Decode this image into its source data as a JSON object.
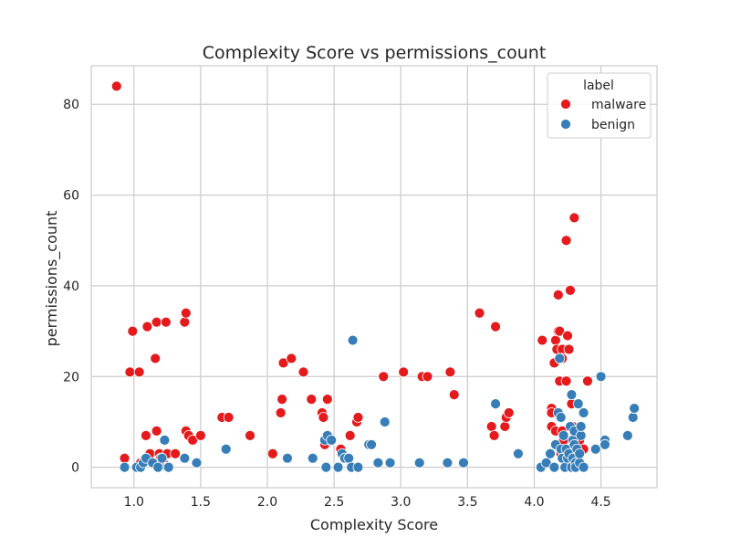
{
  "chart_data": {
    "type": "scatter",
    "title": "Complexity Score vs permissions_count",
    "xlabel": "Complexity Score",
    "ylabel": "permissions_count",
    "xlim": [
      0.68,
      4.92
    ],
    "ylim": [
      -4.5,
      88.5
    ],
    "xticks": [
      1.0,
      1.5,
      2.0,
      2.5,
      3.0,
      3.5,
      4.0,
      4.5
    ],
    "xtick_labels": [
      "1.0",
      "1.5",
      "2.0",
      "2.5",
      "3.0",
      "3.5",
      "4.0",
      "4.5"
    ],
    "yticks": [
      0,
      20,
      40,
      60,
      80
    ],
    "ytick_labels": [
      "0",
      "20",
      "40",
      "60",
      "80"
    ],
    "grid": true,
    "legend": {
      "title": "label",
      "placement": "top-right"
    },
    "series": [
      {
        "name": "malware",
        "color": "#e41a1c",
        "points": [
          [
            0.87,
            84
          ],
          [
            0.93,
            2
          ],
          [
            0.97,
            21
          ],
          [
            0.99,
            30
          ],
          [
            1.04,
            21
          ],
          [
            1.05,
            1
          ],
          [
            1.09,
            7
          ],
          [
            1.1,
            31
          ],
          [
            1.12,
            3
          ],
          [
            1.16,
            24
          ],
          [
            1.17,
            32
          ],
          [
            1.17,
            8
          ],
          [
            1.19,
            3
          ],
          [
            1.2,
            2
          ],
          [
            1.22,
            1
          ],
          [
            1.24,
            32
          ],
          [
            1.25,
            3
          ],
          [
            1.31,
            3
          ],
          [
            1.38,
            32
          ],
          [
            1.39,
            34
          ],
          [
            1.39,
            8
          ],
          [
            1.41,
            7
          ],
          [
            1.44,
            6
          ],
          [
            1.5,
            7
          ],
          [
            1.66,
            11
          ],
          [
            1.71,
            11
          ],
          [
            1.87,
            7
          ],
          [
            2.04,
            3
          ],
          [
            2.1,
            12
          ],
          [
            2.11,
            15
          ],
          [
            2.12,
            23
          ],
          [
            2.18,
            24
          ],
          [
            2.27,
            21
          ],
          [
            2.33,
            15
          ],
          [
            2.41,
            12
          ],
          [
            2.42,
            11
          ],
          [
            2.43,
            5
          ],
          [
            2.45,
            15
          ],
          [
            2.47,
            6
          ],
          [
            2.55,
            4
          ],
          [
            2.62,
            7
          ],
          [
            2.67,
            10
          ],
          [
            2.68,
            11
          ],
          [
            2.87,
            20
          ],
          [
            3.02,
            21
          ],
          [
            3.16,
            20
          ],
          [
            3.2,
            20
          ],
          [
            3.37,
            21
          ],
          [
            3.4,
            16
          ],
          [
            3.59,
            34
          ],
          [
            3.68,
            9
          ],
          [
            3.7,
            7
          ],
          [
            3.71,
            31
          ],
          [
            3.78,
            9
          ],
          [
            3.79,
            11
          ],
          [
            3.81,
            12
          ],
          [
            4.06,
            28
          ],
          [
            4.13,
            13
          ],
          [
            4.13,
            12
          ],
          [
            4.13,
            9
          ],
          [
            4.15,
            23
          ],
          [
            4.16,
            28
          ],
          [
            4.16,
            8
          ],
          [
            4.17,
            26
          ],
          [
            4.18,
            30
          ],
          [
            4.18,
            38
          ],
          [
            4.19,
            19
          ],
          [
            4.19,
            30
          ],
          [
            4.2,
            3
          ],
          [
            4.21,
            26
          ],
          [
            4.21,
            24
          ],
          [
            4.21,
            8
          ],
          [
            4.22,
            6
          ],
          [
            4.24,
            19
          ],
          [
            4.24,
            50
          ],
          [
            4.25,
            29
          ],
          [
            4.25,
            3
          ],
          [
            4.26,
            26
          ],
          [
            4.27,
            39
          ],
          [
            4.28,
            14
          ],
          [
            4.29,
            9
          ],
          [
            4.3,
            55
          ],
          [
            4.3,
            8
          ],
          [
            4.32,
            7
          ],
          [
            4.34,
            6
          ],
          [
            4.37,
            4
          ],
          [
            4.4,
            19
          ]
        ]
      },
      {
        "name": "benign",
        "color": "#377eb8",
        "points": [
          [
            0.93,
            0
          ],
          [
            1.02,
            0
          ],
          [
            1.05,
            0
          ],
          [
            1.07,
            1
          ],
          [
            1.09,
            2
          ],
          [
            1.14,
            1
          ],
          [
            1.18,
            0
          ],
          [
            1.21,
            2
          ],
          [
            1.23,
            6
          ],
          [
            1.25,
            0
          ],
          [
            1.26,
            0
          ],
          [
            1.38,
            2
          ],
          [
            1.47,
            1
          ],
          [
            1.69,
            4
          ],
          [
            2.15,
            2
          ],
          [
            2.34,
            2
          ],
          [
            2.43,
            6
          ],
          [
            2.44,
            0
          ],
          [
            2.45,
            7
          ],
          [
            2.48,
            6
          ],
          [
            2.53,
            0
          ],
          [
            2.56,
            3
          ],
          [
            2.58,
            2
          ],
          [
            2.61,
            2
          ],
          [
            2.63,
            0
          ],
          [
            2.64,
            28
          ],
          [
            2.68,
            0
          ],
          [
            2.76,
            5
          ],
          [
            2.78,
            5
          ],
          [
            2.83,
            1
          ],
          [
            2.88,
            10
          ],
          [
            2.92,
            1
          ],
          [
            3.14,
            1
          ],
          [
            3.35,
            1
          ],
          [
            3.47,
            1
          ],
          [
            3.71,
            14
          ],
          [
            3.88,
            3
          ],
          [
            4.05,
            0
          ],
          [
            4.09,
            1
          ],
          [
            4.12,
            3
          ],
          [
            4.15,
            0
          ],
          [
            4.16,
            5
          ],
          [
            4.18,
            12
          ],
          [
            4.19,
            24
          ],
          [
            4.2,
            11
          ],
          [
            4.2,
            4
          ],
          [
            4.21,
            2
          ],
          [
            4.22,
            7
          ],
          [
            4.23,
            0
          ],
          [
            4.24,
            4
          ],
          [
            4.25,
            2
          ],
          [
            4.26,
            3
          ],
          [
            4.27,
            9
          ],
          [
            4.28,
            16
          ],
          [
            4.28,
            0
          ],
          [
            4.29,
            2
          ],
          [
            4.29,
            6
          ],
          [
            4.3,
            8
          ],
          [
            4.3,
            5
          ],
          [
            4.31,
            1
          ],
          [
            4.31,
            0
          ],
          [
            4.32,
            4
          ],
          [
            4.33,
            14
          ],
          [
            4.34,
            1
          ],
          [
            4.34,
            3
          ],
          [
            4.35,
            7
          ],
          [
            4.35,
            9
          ],
          [
            4.37,
            12
          ],
          [
            4.37,
            0
          ],
          [
            4.46,
            4
          ],
          [
            4.5,
            20
          ],
          [
            4.53,
            6
          ],
          [
            4.53,
            5
          ],
          [
            4.7,
            7
          ],
          [
            4.74,
            11
          ],
          [
            4.75,
            13
          ]
        ]
      }
    ]
  }
}
